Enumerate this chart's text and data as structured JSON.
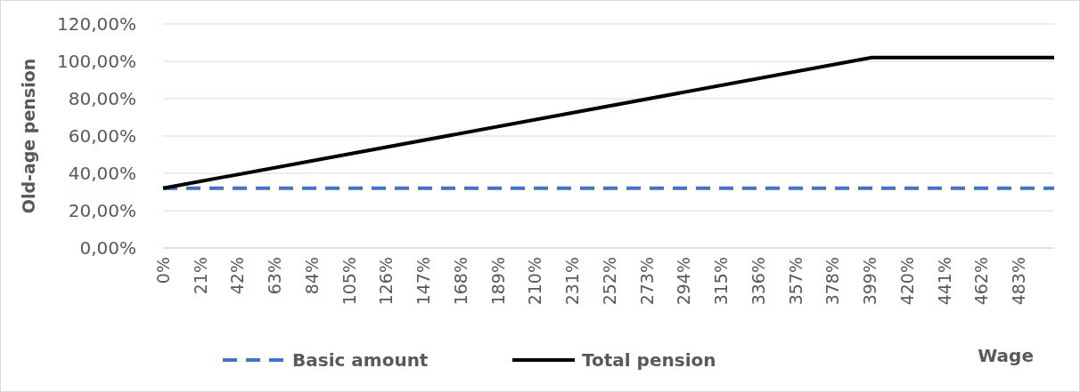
{
  "chart_data": {
    "type": "line",
    "xlabel": "Wage",
    "ylabel": "Old-age pension",
    "xlim": [
      0,
      503
    ],
    "xticks": [
      {
        "value": 0,
        "label": "0%"
      },
      {
        "value": 21,
        "label": "21%"
      },
      {
        "value": 42,
        "label": "42%"
      },
      {
        "value": 63,
        "label": "63%"
      },
      {
        "value": 84,
        "label": "84%"
      },
      {
        "value": 105,
        "label": "105%"
      },
      {
        "value": 126,
        "label": "126%"
      },
      {
        "value": 147,
        "label": "147%"
      },
      {
        "value": 168,
        "label": "168%"
      },
      {
        "value": 189,
        "label": "189%"
      },
      {
        "value": 210,
        "label": "210%"
      },
      {
        "value": 231,
        "label": "231%"
      },
      {
        "value": 252,
        "label": "252%"
      },
      {
        "value": 273,
        "label": "273%"
      },
      {
        "value": 294,
        "label": "294%"
      },
      {
        "value": 315,
        "label": "315%"
      },
      {
        "value": 336,
        "label": "336%"
      },
      {
        "value": 357,
        "label": "357%"
      },
      {
        "value": 378,
        "label": "378%"
      },
      {
        "value": 399,
        "label": "399%"
      },
      {
        "value": 420,
        "label": "420%"
      },
      {
        "value": 441,
        "label": "441%"
      },
      {
        "value": 462,
        "label": "462%"
      },
      {
        "value": 483,
        "label": "483%"
      }
    ],
    "ylim": [
      0,
      120
    ],
    "yticks": [
      {
        "value": 0,
        "label": "0,00%"
      },
      {
        "value": 20,
        "label": "20,00%"
      },
      {
        "value": 40,
        "label": "40,00%"
      },
      {
        "value": 60,
        "label": "60,00%"
      },
      {
        "value": 80,
        "label": "80,00%"
      },
      {
        "value": 100,
        "label": "100,00%"
      },
      {
        "value": 120,
        "label": "120,00%"
      }
    ],
    "grid": "y",
    "legend": "bottom",
    "marker": "none",
    "series": [
      {
        "name": "Basic amount",
        "color": "#4472c4",
        "line_style": "dashed",
        "x": [
          0,
          503
        ],
        "values": [
          32,
          32
        ]
      },
      {
        "name": "Total pension",
        "color": "#000000",
        "line_style": "solid",
        "x": [
          0,
          400,
          503
        ],
        "values": [
          32,
          102,
          102
        ]
      }
    ]
  }
}
